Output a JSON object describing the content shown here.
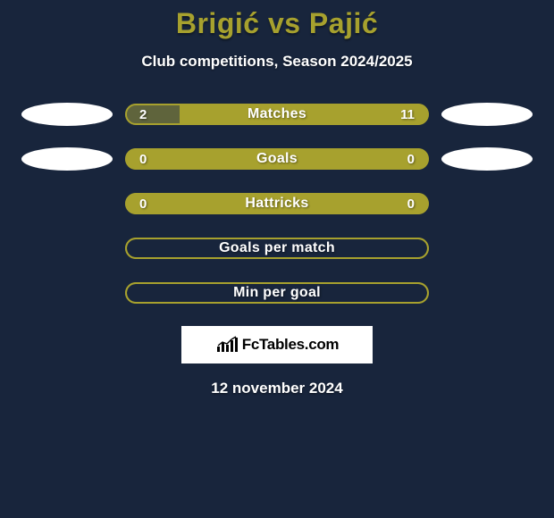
{
  "title": "Brigić vs Pajić",
  "subtitle": "Club competitions, Season 2024/2025",
  "colors": {
    "background": "#18253c",
    "accent": "#a7a12e",
    "fill_dark": "#5f643c",
    "text": "#ffffff",
    "oval": "#ffffff"
  },
  "rows": [
    {
      "label": "Matches",
      "left_value": "2",
      "right_value": "11",
      "left_fill_pct": 18,
      "show_ovals": true,
      "empty_style": false
    },
    {
      "label": "Goals",
      "left_value": "0",
      "right_value": "0",
      "left_fill_pct": 0,
      "show_ovals": true,
      "empty_style": false
    },
    {
      "label": "Hattricks",
      "left_value": "0",
      "right_value": "0",
      "left_fill_pct": 0,
      "show_ovals": false,
      "empty_style": false
    },
    {
      "label": "Goals per match",
      "left_value": "",
      "right_value": "",
      "left_fill_pct": 0,
      "show_ovals": false,
      "empty_style": true
    },
    {
      "label": "Min per goal",
      "left_value": "",
      "right_value": "",
      "left_fill_pct": 0,
      "show_ovals": false,
      "empty_style": true
    }
  ],
  "logo": {
    "text": "FcTables.com"
  },
  "date": "12 november 2024"
}
